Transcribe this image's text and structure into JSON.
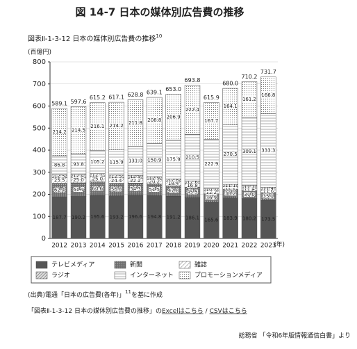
{
  "chart_data": {
    "type": "stacked_bar",
    "title": "図 14-7 日本の媒体別広告費の推移",
    "subtitle": "図表Ⅱ-1-3-12 日本の媒体別広告費の推移",
    "subtitle_note": "10",
    "y_unit": "(百億円)",
    "x_unit": "(年)",
    "categories": [
      "2012",
      "2013",
      "2014",
      "2015",
      "2016",
      "2017",
      "2018",
      "2019",
      "2020",
      "2021",
      "2022",
      "2023"
    ],
    "series": [
      {
        "name": "テレビメディア",
        "color": "#555555",
        "pattern": "solid",
        "values": [
          187.7,
          190.2,
          195.6,
          193.2,
          196.6,
          194.8,
          191.2,
          186.1,
          165.6,
          183.9,
          180.2,
          173.5
        ],
        "value_labels": [
          "187.7",
          "190.2",
          "195.6",
          "193.2",
          "196.6",
          "194.8",
          "191.2",
          "186.1",
          "165.6",
          "183.9",
          "180.2",
          "173.5"
        ]
      },
      {
        "name": "新聞",
        "color": "#8a8a8a",
        "pattern": "dots",
        "values": [
          62.4,
          61.7,
          60.6,
          56.8,
          54.3,
          51.5,
          47.8,
          45.5,
          36.9,
          38.2,
          37.0,
          35.1
        ],
        "value_labels": [
          "62.4",
          "61.7",
          "60.6",
          "56.8",
          "54.3",
          "51.5",
          "47.8",
          "45.5",
          "36.9",
          "38.2",
          "37.0",
          "35.1"
        ]
      },
      {
        "name": "雑誌",
        "color": "#b5b5b5",
        "pattern": "hatch",
        "values": [
          25.5,
          25.0,
          25.0,
          24.4,
          22.2,
          20.2,
          18.4,
          16.8,
          12.2,
          12.2,
          11.4,
          11.6
        ],
        "value_labels": [
          "25.5",
          "25.0",
          "25.0",
          "24.4",
          "22.2",
          "20.2",
          "18.4",
          "16.8",
          "12.2",
          "12.2",
          "11.4",
          "11.6"
        ]
      },
      {
        "name": "ラジオ",
        "color": "#9a9a9a",
        "pattern": "crosshatch",
        "values": [
          12.5,
          12.4,
          12.7,
          12.5,
          12.9,
          12.9,
          12.8,
          12.6,
          10.7,
          11.1,
          11.3,
          11.4
        ],
        "value_labels": [
          "12.5",
          "12.4",
          "12.7",
          "12.5",
          "12.9",
          "12.9",
          "12.8",
          "12.6",
          "10.7",
          "11.1",
          "11.3",
          "11.4"
        ]
      },
      {
        "name": "インターネット",
        "color": "#c8c8c8",
        "pattern": "lines",
        "values": [
          86.8,
          93.8,
          105.2,
          115.9,
          131.0,
          150.9,
          175.9,
          210.5,
          222.9,
          270.5,
          309.1,
          333.3
        ],
        "value_labels": [
          "86.8",
          "93.8",
          "105.2",
          "115.9",
          "131.0",
          "150.9",
          "175.9",
          "210.5",
          "222.9",
          "270.5",
          "309.1",
          "333.3"
        ]
      },
      {
        "name": "プロモーションメディア",
        "color": "#d6d6d6",
        "pattern": "fine-dots",
        "values": [
          214.2,
          214.5,
          216.1,
          214.2,
          211.8,
          208.8,
          206.9,
          222.4,
          167.7,
          164.1,
          161.2,
          166.8
        ],
        "value_labels": [
          "214.2",
          "214.5",
          "216.1",
          "214.2",
          "211.8",
          "208.8",
          "206.9",
          "222.4",
          "167.7",
          "164.1",
          "161.2",
          "166.8"
        ]
      }
    ],
    "totals": {
      "values": [
        589.1,
        597.6,
        615.2,
        617.1,
        628.8,
        639.1,
        653.0,
        693.8,
        615.9,
        680.0,
        710.2,
        731.7
      ],
      "value_labels": [
        "589.1",
        "597.6",
        "615.2",
        "617.1",
        "628.8",
        "639.1",
        "653.0",
        "693.8",
        "615.9",
        "680.0",
        "710.2",
        "731.7"
      ]
    },
    "ylim": [
      0,
      800
    ],
    "yticks": [
      0,
      100,
      200,
      300,
      400,
      500,
      600,
      700,
      800
    ],
    "grid": true,
    "legend": "bottom"
  },
  "source": {
    "text": "(出典)電通「日本の広告費(各年)」",
    "note": "11",
    "suffix": "を基に作成"
  },
  "links": {
    "prefix": "「図表Ⅱ-1-3-12 日本の媒体別広告費の推移」の",
    "excel": "Excelはこちら",
    "separator": " / ",
    "csv": "CSVはこちら"
  },
  "credit": "総務省 「令和6年版情報通信白書」より"
}
